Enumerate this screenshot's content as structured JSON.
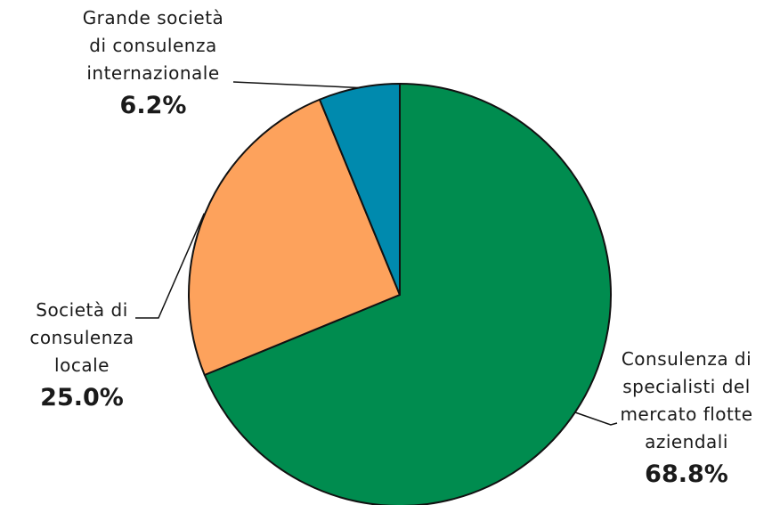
{
  "chart_data": {
    "type": "pie",
    "title": "",
    "slices": [
      {
        "label_lines": [
          "Consulenza di",
          "specialisti del",
          "mercato flotte",
          "aziendali"
        ],
        "value": 68.8,
        "value_label": "68.8%",
        "color": "#008c4f"
      },
      {
        "label_lines": [
          "Società di",
          "consulenza",
          "locale"
        ],
        "value": 25.0,
        "value_label": "25.0%",
        "color": "#fda25c"
      },
      {
        "label_lines": [
          "Grande società",
          "di consulenza",
          "internazionale"
        ],
        "value": 6.2,
        "value_label": "6.2%",
        "color": "#008aae"
      }
    ],
    "start_angle": "12 o'clock",
    "direction": "clockwise",
    "legend": "none"
  }
}
